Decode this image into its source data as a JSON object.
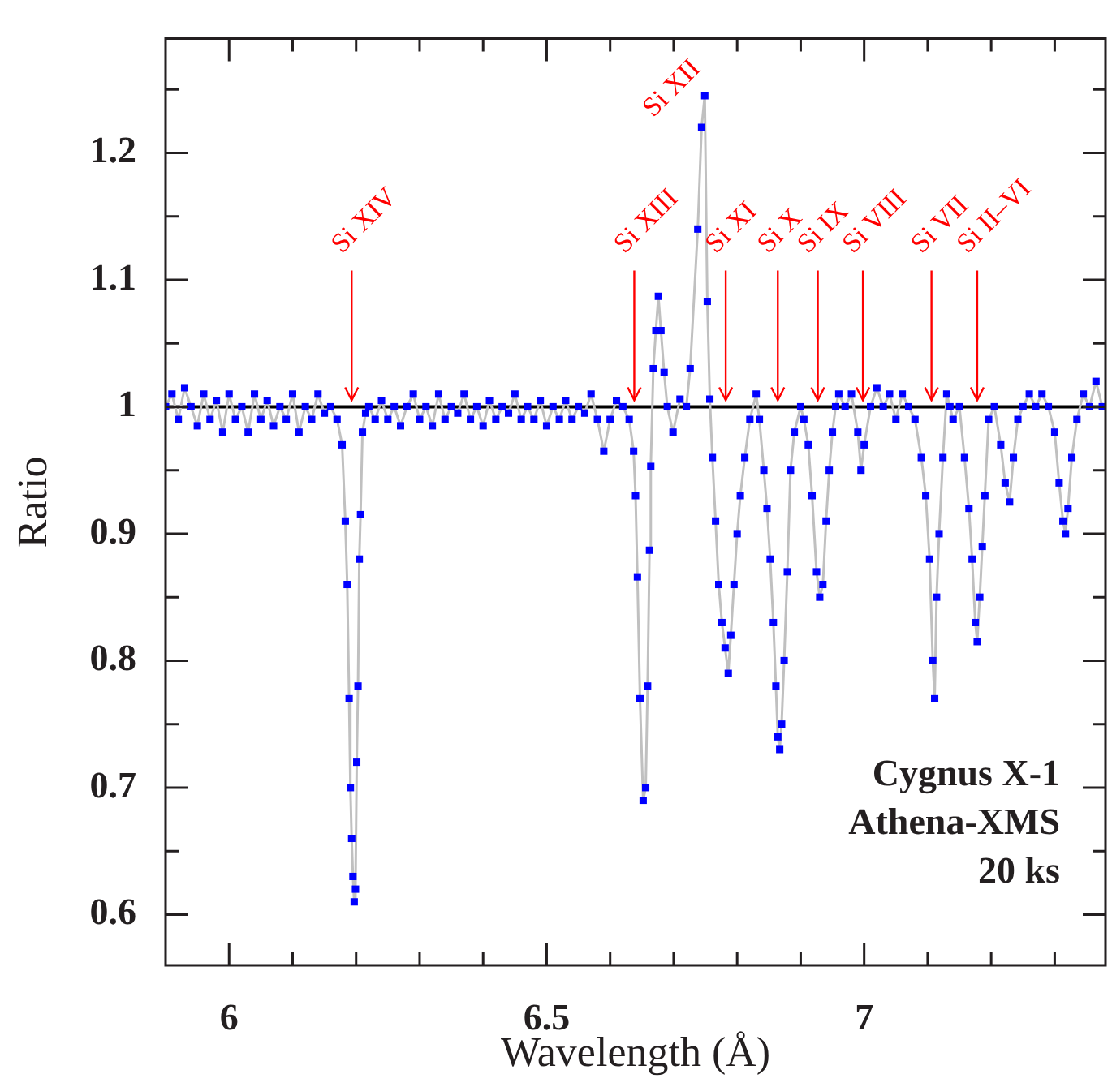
{
  "chart_data": {
    "type": "line",
    "xlabel": "Wavelength (Å)",
    "ylabel": "Ratio",
    "xlim": [
      5.9,
      7.38
    ],
    "ylim": [
      0.56,
      1.29
    ],
    "xticks": [
      6,
      {
        "value": 6.1,
        "label": null
      },
      {
        "value": 6.2,
        "label": null
      },
      {
        "value": 6.3,
        "label": null
      },
      {
        "value": 6.4,
        "label": null
      },
      6.5,
      {
        "value": 6.6,
        "label": null
      },
      {
        "value": 6.7,
        "label": null
      },
      {
        "value": 6.8,
        "label": null
      },
      {
        "value": 6.9,
        "label": null
      },
      7,
      {
        "value": 7.1,
        "label": null
      },
      {
        "value": 7.2,
        "label": null
      },
      {
        "value": 7.3,
        "label": null
      }
    ],
    "yticks": [
      0.6,
      {
        "value": 0.65,
        "label": null
      },
      0.7,
      {
        "value": 0.75,
        "label": null
      },
      0.8,
      {
        "value": 0.85,
        "label": null
      },
      0.9,
      {
        "value": 0.95,
        "label": null
      },
      1,
      {
        "value": 1.05,
        "label": null
      },
      1.1,
      {
        "value": 1.15,
        "label": null
      },
      1.2,
      {
        "value": 1.25,
        "label": null
      }
    ],
    "grid": false,
    "legend": false,
    "marker": "square",
    "line_style": "solid",
    "ref_lines": [
      {
        "axis": "y",
        "value": 1,
        "color": "#000000"
      }
    ],
    "annotations": [
      {
        "text": "Si XIV",
        "x": 6.193,
        "y": 1
      },
      {
        "text": "Si XIII",
        "x": 6.638,
        "y": 1
      },
      {
        "text": "Si XII",
        "x": 6.749,
        "y": 1.245
      },
      {
        "text": "Si XI",
        "x": 6.782,
        "y": 1
      },
      {
        "text": "Si X",
        "x": 6.864,
        "y": 1
      },
      {
        "text": "Si IX",
        "x": 6.927,
        "y": 1
      },
      {
        "text": "Si VIII",
        "x": 6.998,
        "y": 1
      },
      {
        "text": "Si VII",
        "x": 7.106,
        "y": 1
      },
      {
        "text": "Si II–VI",
        "x": 7.178,
        "y": 1
      },
      "Cygnus X-1",
      "Athena-XMS",
      "20 ks"
    ],
    "series": [
      {
        "color": "#0000ff",
        "x": [
          5.9,
          5.91,
          5.92,
          5.93,
          5.94,
          5.95,
          5.96,
          5.97,
          5.98,
          5.99,
          6.0,
          6.01,
          6.02,
          6.03,
          6.04,
          6.05,
          6.06,
          6.07,
          6.08,
          6.09,
          6.1,
          6.11,
          6.12,
          6.13,
          6.14,
          6.15,
          6.16,
          6.17,
          6.178,
          6.183,
          6.186,
          6.189,
          6.191,
          6.193,
          6.195,
          6.197,
          6.199,
          6.201,
          6.203,
          6.205,
          6.207,
          6.21,
          6.215,
          6.22,
          6.23,
          6.24,
          6.25,
          6.26,
          6.27,
          6.28,
          6.29,
          6.3,
          6.31,
          6.32,
          6.33,
          6.34,
          6.35,
          6.36,
          6.37,
          6.38,
          6.39,
          6.4,
          6.41,
          6.42,
          6.43,
          6.44,
          6.45,
          6.46,
          6.47,
          6.48,
          6.49,
          6.5,
          6.51,
          6.52,
          6.53,
          6.54,
          6.55,
          6.56,
          6.57,
          6.58,
          6.59,
          6.6,
          6.61,
          6.62,
          6.63,
          6.637,
          6.64,
          6.643,
          6.647,
          6.652,
          6.656,
          6.659,
          6.662,
          6.664,
          6.668,
          6.672,
          6.676,
          6.68,
          6.685,
          6.69,
          6.699,
          6.71,
          6.72,
          6.726,
          6.738,
          6.744,
          6.749,
          6.753,
          6.757,
          6.761,
          6.766,
          6.771,
          6.776,
          6.781,
          6.786,
          6.79,
          6.795,
          6.8,
          6.805,
          6.812,
          6.82,
          6.83,
          6.835,
          6.842,
          6.847,
          6.852,
          6.857,
          6.861,
          6.864,
          6.867,
          6.87,
          6.874,
          6.879,
          6.884,
          6.89,
          6.9,
          6.905,
          6.912,
          6.918,
          6.925,
          6.93,
          6.935,
          6.94,
          6.945,
          6.95,
          6.955,
          6.96,
          6.97,
          6.98,
          6.99,
          6.995,
          7.0,
          7.01,
          7.02,
          7.03,
          7.04,
          7.05,
          7.06,
          7.07,
          7.08,
          7.09,
          7.097,
          7.103,
          7.108,
          7.111,
          7.114,
          7.118,
          7.124,
          7.13,
          7.135,
          7.14,
          7.15,
          7.158,
          7.165,
          7.17,
          7.175,
          7.178,
          7.182,
          7.186,
          7.19,
          7.196,
          7.205,
          7.215,
          7.222,
          7.229,
          7.235,
          7.242,
          7.25,
          7.26,
          7.27,
          7.28,
          7.29,
          7.3,
          7.307,
          7.313,
          7.317,
          7.321,
          7.327,
          7.335,
          7.345,
          7.355,
          7.365,
          7.375
        ],
        "values": [
          1.0,
          1.01,
          0.99,
          1.015,
          1.0,
          0.985,
          1.01,
          0.99,
          1.005,
          0.98,
          1.01,
          0.99,
          1.0,
          0.98,
          1.01,
          0.99,
          1.005,
          0.985,
          1.0,
          0.99,
          1.01,
          0.98,
          1.0,
          0.99,
          1.01,
          0.995,
          1.0,
          0.99,
          0.97,
          0.91,
          0.86,
          0.77,
          0.7,
          0.66,
          0.63,
          0.61,
          0.62,
          0.72,
          0.78,
          0.88,
          0.915,
          0.98,
          0.995,
          1.0,
          0.99,
          1.005,
          0.99,
          1.0,
          0.985,
          1.0,
          1.01,
          0.99,
          1.0,
          0.985,
          1.01,
          0.99,
          1.0,
          0.995,
          1.01,
          0.99,
          1.0,
          0.985,
          1.005,
          0.99,
          1.0,
          0.995,
          1.01,
          0.99,
          1.0,
          0.99,
          1.005,
          0.985,
          1.0,
          0.99,
          1.005,
          0.99,
          1.0,
          0.995,
          1.01,
          0.99,
          0.965,
          0.99,
          1.005,
          1.0,
          0.99,
          0.965,
          0.93,
          0.866,
          0.77,
          0.69,
          0.7,
          0.78,
          0.887,
          0.953,
          1.03,
          1.06,
          1.087,
          1.06,
          1.027,
          1.0,
          0.98,
          1.006,
          1.0,
          1.03,
          1.14,
          1.22,
          1.245,
          1.083,
          1.006,
          0.96,
          0.91,
          0.86,
          0.83,
          0.81,
          0.79,
          0.82,
          0.86,
          0.9,
          0.93,
          0.96,
          0.99,
          1.01,
          0.99,
          0.95,
          0.92,
          0.88,
          0.83,
          0.78,
          0.74,
          0.73,
          0.75,
          0.8,
          0.87,
          0.95,
          0.98,
          1.0,
          0.99,
          0.97,
          0.93,
          0.87,
          0.85,
          0.86,
          0.91,
          0.95,
          0.98,
          1.0,
          1.01,
          1.0,
          1.01,
          0.98,
          0.95,
          0.97,
          1.0,
          1.015,
          1.0,
          1.01,
          0.99,
          1.01,
          1.0,
          0.99,
          0.96,
          0.93,
          0.88,
          0.8,
          0.77,
          0.85,
          0.9,
          0.96,
          1.01,
          1.0,
          0.99,
          1.0,
          0.96,
          0.92,
          0.88,
          0.83,
          0.815,
          0.85,
          0.89,
          0.93,
          0.99,
          1.0,
          0.97,
          0.94,
          0.925,
          0.96,
          0.99,
          1.0,
          1.01,
          1.0,
          1.01,
          1.0,
          0.98,
          0.94,
          0.91,
          0.9,
          0.92,
          0.96,
          0.99,
          1.01,
          1.0,
          1.02,
          1.0
        ]
      }
    ]
  }
}
